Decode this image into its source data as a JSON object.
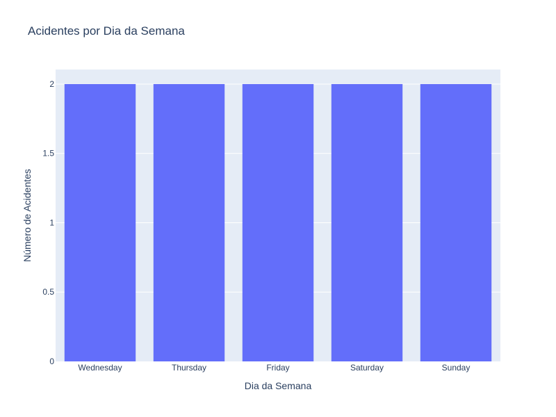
{
  "chart_data": {
    "type": "bar",
    "title": "Acidentes por Dia da Semana",
    "xlabel": "Dia da Semana",
    "ylabel": "Número de Acidentes",
    "categories": [
      "Wednesday",
      "Thursday",
      "Friday",
      "Saturday",
      "Sunday"
    ],
    "values": [
      2,
      2,
      2,
      2,
      2
    ],
    "ylim": [
      0,
      2.105
    ],
    "yticks": [
      0,
      0.5,
      1,
      1.5,
      2
    ],
    "ytick_labels": [
      "0",
      "0.5",
      "1",
      "1.5",
      "2"
    ],
    "grid": true,
    "legend": "none",
    "colors": {
      "bar": "#636efa",
      "plot_bg": "#e5ecf6",
      "text": "#2a3f5f"
    }
  }
}
